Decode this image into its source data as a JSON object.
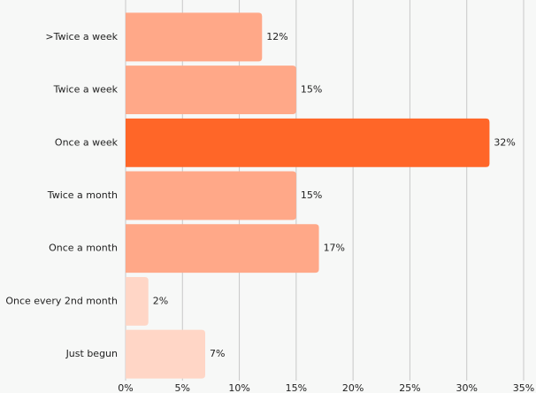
{
  "chart_data": {
    "type": "hbar",
    "categories": [
      ">Twice a week",
      "Twice a week",
      "Once a week",
      "Twice a month",
      "Once a month",
      "Once every 2nd month",
      "Just begun"
    ],
    "values": [
      12,
      15,
      32,
      15,
      17,
      2,
      7
    ],
    "value_labels": [
      "12%",
      "15%",
      "32%",
      "15%",
      "17%",
      "2%",
      "7%"
    ],
    "colors": [
      "#ffa888",
      "#ffa888",
      "#ff6628",
      "#ffa888",
      "#ffa888",
      "#ffd6c6",
      "#ffd6c6"
    ],
    "xlim": [
      0,
      35
    ],
    "xticks": [
      {
        "value": 0,
        "label": "0%"
      },
      {
        "value": 5,
        "label": "5%"
      },
      {
        "value": 10,
        "label": "10%"
      },
      {
        "value": 15,
        "label": "15%"
      },
      {
        "value": 20,
        "label": "20%"
      },
      {
        "value": 25,
        "label": "25%"
      },
      {
        "value": 30,
        "label": "30%"
      },
      {
        "value": 35,
        "label": "35%"
      }
    ],
    "grid": true
  }
}
